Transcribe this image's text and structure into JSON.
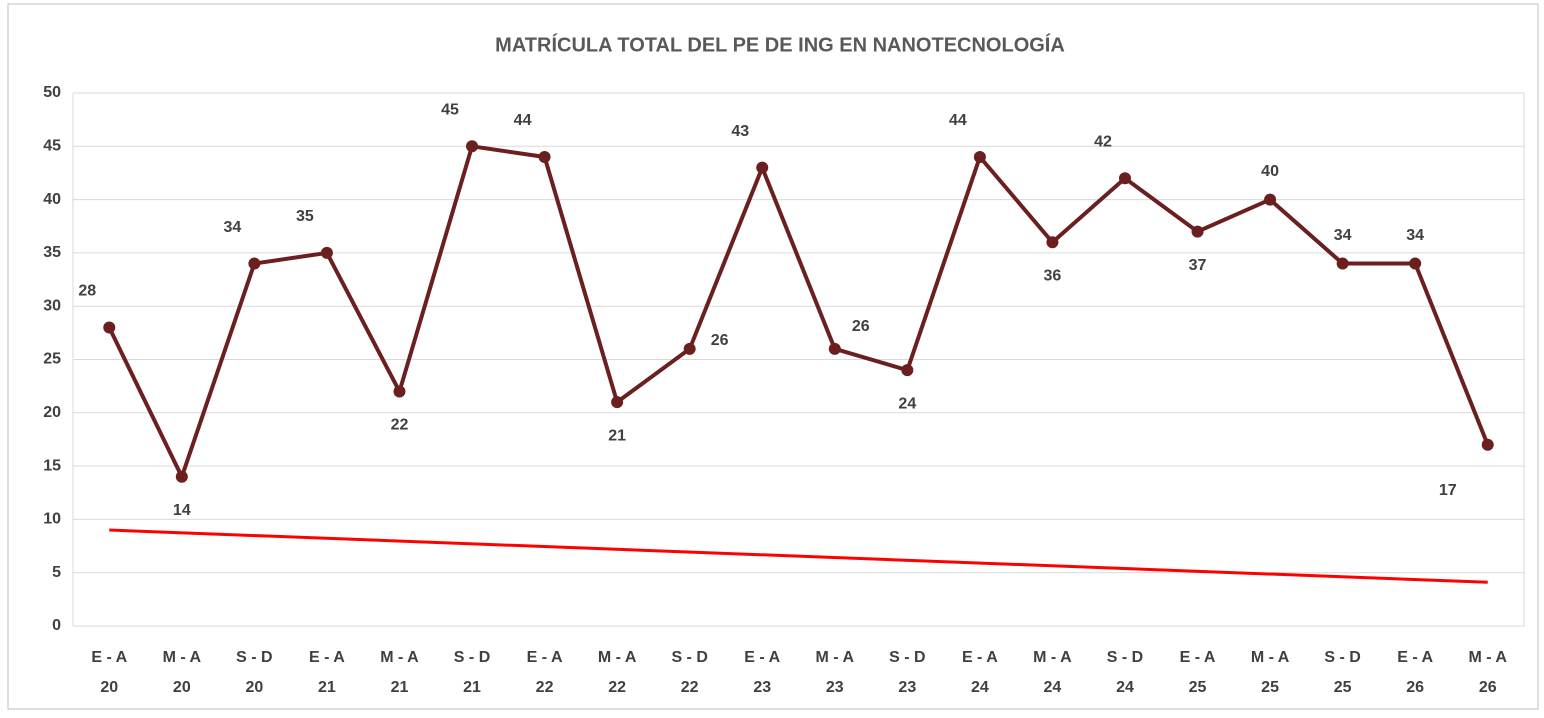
{
  "chart_data": {
    "type": "line",
    "title": "MATRÍCULA TOTAL DEL PE DE ING EN NANOTECNOLOGÍA",
    "categories": [
      [
        "E - A",
        "20"
      ],
      [
        "M - A",
        "20"
      ],
      [
        "S - D",
        "20"
      ],
      [
        "E - A",
        "21"
      ],
      [
        "M - A",
        "21"
      ],
      [
        "S - D",
        "21"
      ],
      [
        "E - A",
        "22"
      ],
      [
        "M - A",
        "22"
      ],
      [
        "S - D",
        "22"
      ],
      [
        "E - A",
        "23"
      ],
      [
        "M - A",
        "23"
      ],
      [
        "S - D",
        "23"
      ],
      [
        "E - A",
        "24"
      ],
      [
        "M - A",
        "24"
      ],
      [
        "S - D",
        "24"
      ],
      [
        "E - A",
        "25"
      ],
      [
        "M - A",
        "25"
      ],
      [
        "S - D",
        "25"
      ],
      [
        "E - A",
        "26"
      ],
      [
        "M - A",
        "26"
      ]
    ],
    "series": [
      {
        "color": "#6b1f1f",
        "values": [
          28,
          14,
          34,
          35,
          22,
          45,
          44,
          21,
          26,
          43,
          26,
          24,
          44,
          36,
          42,
          37,
          40,
          34,
          34,
          17
        ]
      }
    ],
    "trendline": {
      "color": "#ff0000",
      "start": 9,
      "end": 4.1
    },
    "ylim": [
      0,
      50
    ],
    "yticks": [
      0,
      5,
      10,
      15,
      20,
      25,
      30,
      35,
      40,
      45,
      50
    ],
    "grid": true
  }
}
